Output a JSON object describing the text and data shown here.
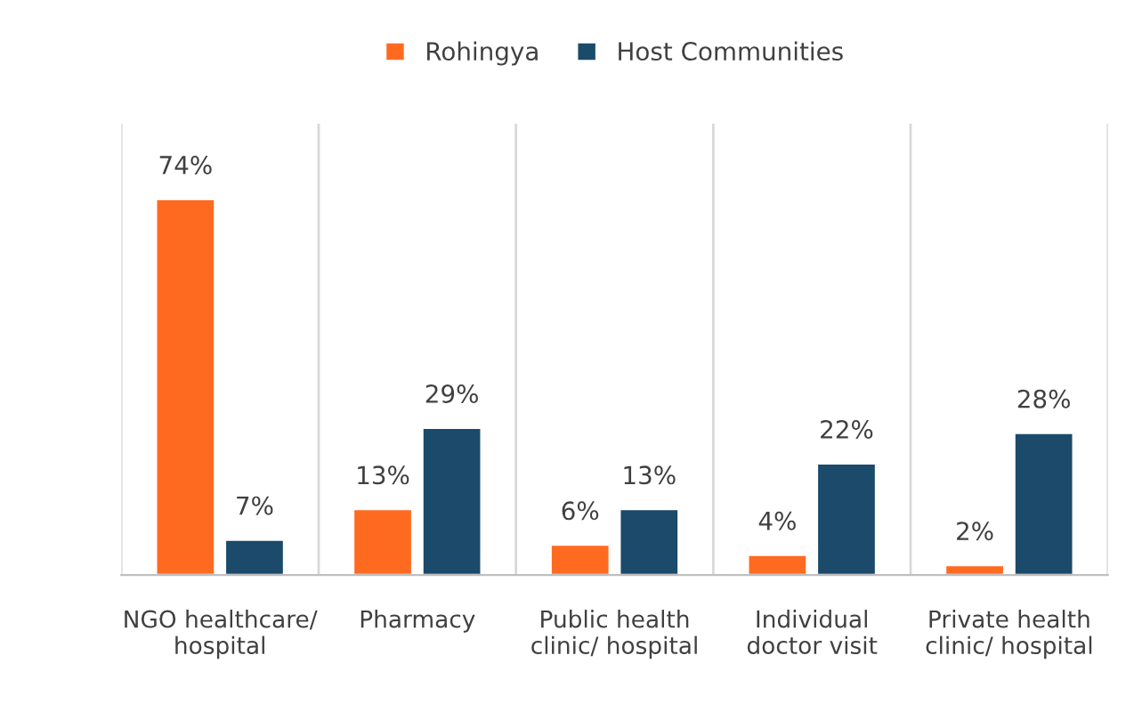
{
  "chart_data": {
    "type": "bar",
    "categories": [
      "NGO healthcare/ hospital",
      "Pharmacy",
      "Public health clinic/ hospital",
      "Individual doctor visit",
      "Private health clinic/ hospital"
    ],
    "series": [
      {
        "name": "Rohingya",
        "color": "#ff6a21",
        "values": [
          74,
          13,
          6,
          4,
          2
        ],
        "value_labels": [
          "74%",
          "13%",
          "6%",
          "4%",
          "2%"
        ]
      },
      {
        "name": "Host Communities",
        "color": "#1b4a6b",
        "values": [
          7,
          29,
          13,
          22,
          28
        ],
        "value_labels": [
          "7%",
          "29%",
          "13%",
          "22%",
          "28%"
        ]
      }
    ],
    "legend": "top",
    "grid": "x"
  }
}
